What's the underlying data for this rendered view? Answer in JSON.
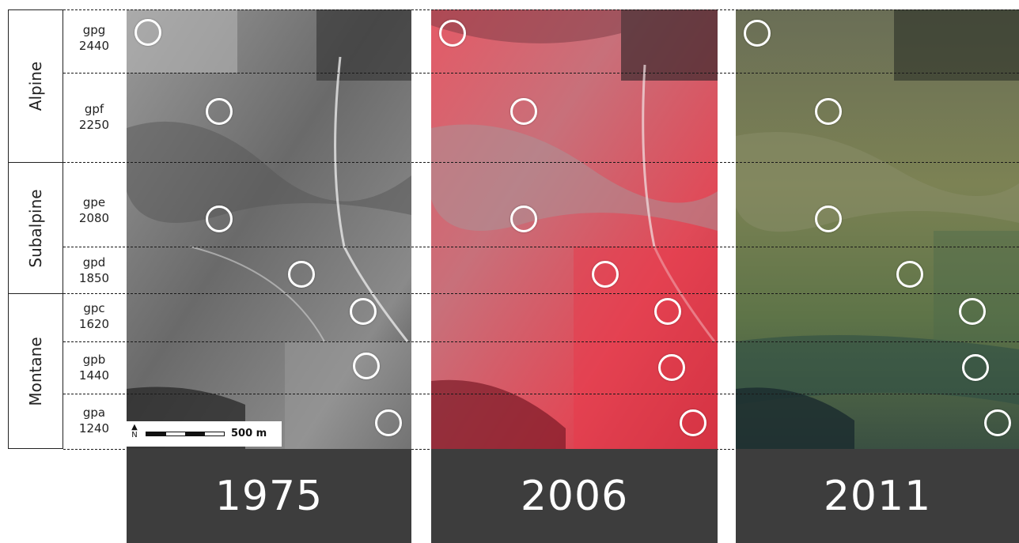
{
  "zones": [
    {
      "id": "alpine",
      "label": "Alpine"
    },
    {
      "id": "subalpine",
      "label": "Subalpine"
    },
    {
      "id": "montane",
      "label": "Montane"
    }
  ],
  "plots": [
    {
      "code": "gpg",
      "elevation": "2440"
    },
    {
      "code": "gpf",
      "elevation": "2250"
    },
    {
      "code": "gpe",
      "elevation": "2080"
    },
    {
      "code": "gpd",
      "elevation": "1850"
    },
    {
      "code": "gpc",
      "elevation": "1620"
    },
    {
      "code": "gpb",
      "elevation": "1440"
    },
    {
      "code": "gpa",
      "elevation": "1240"
    }
  ],
  "panels": [
    {
      "year": "1975",
      "imagery": "black-and-white aerial photograph",
      "base_color": "#7a7a7a"
    },
    {
      "year": "2006",
      "imagery": "false-color infrared aerial photograph",
      "base_color": "#d8505e"
    },
    {
      "year": "2011",
      "imagery": "true-color aerial photograph",
      "base_color": "#6e7350"
    }
  ],
  "scale": {
    "north": "N",
    "label": "500 m"
  },
  "colors": {
    "year_bar": "#3d3d3d",
    "circle": "#ffffff",
    "year_text": "#ffffff"
  }
}
